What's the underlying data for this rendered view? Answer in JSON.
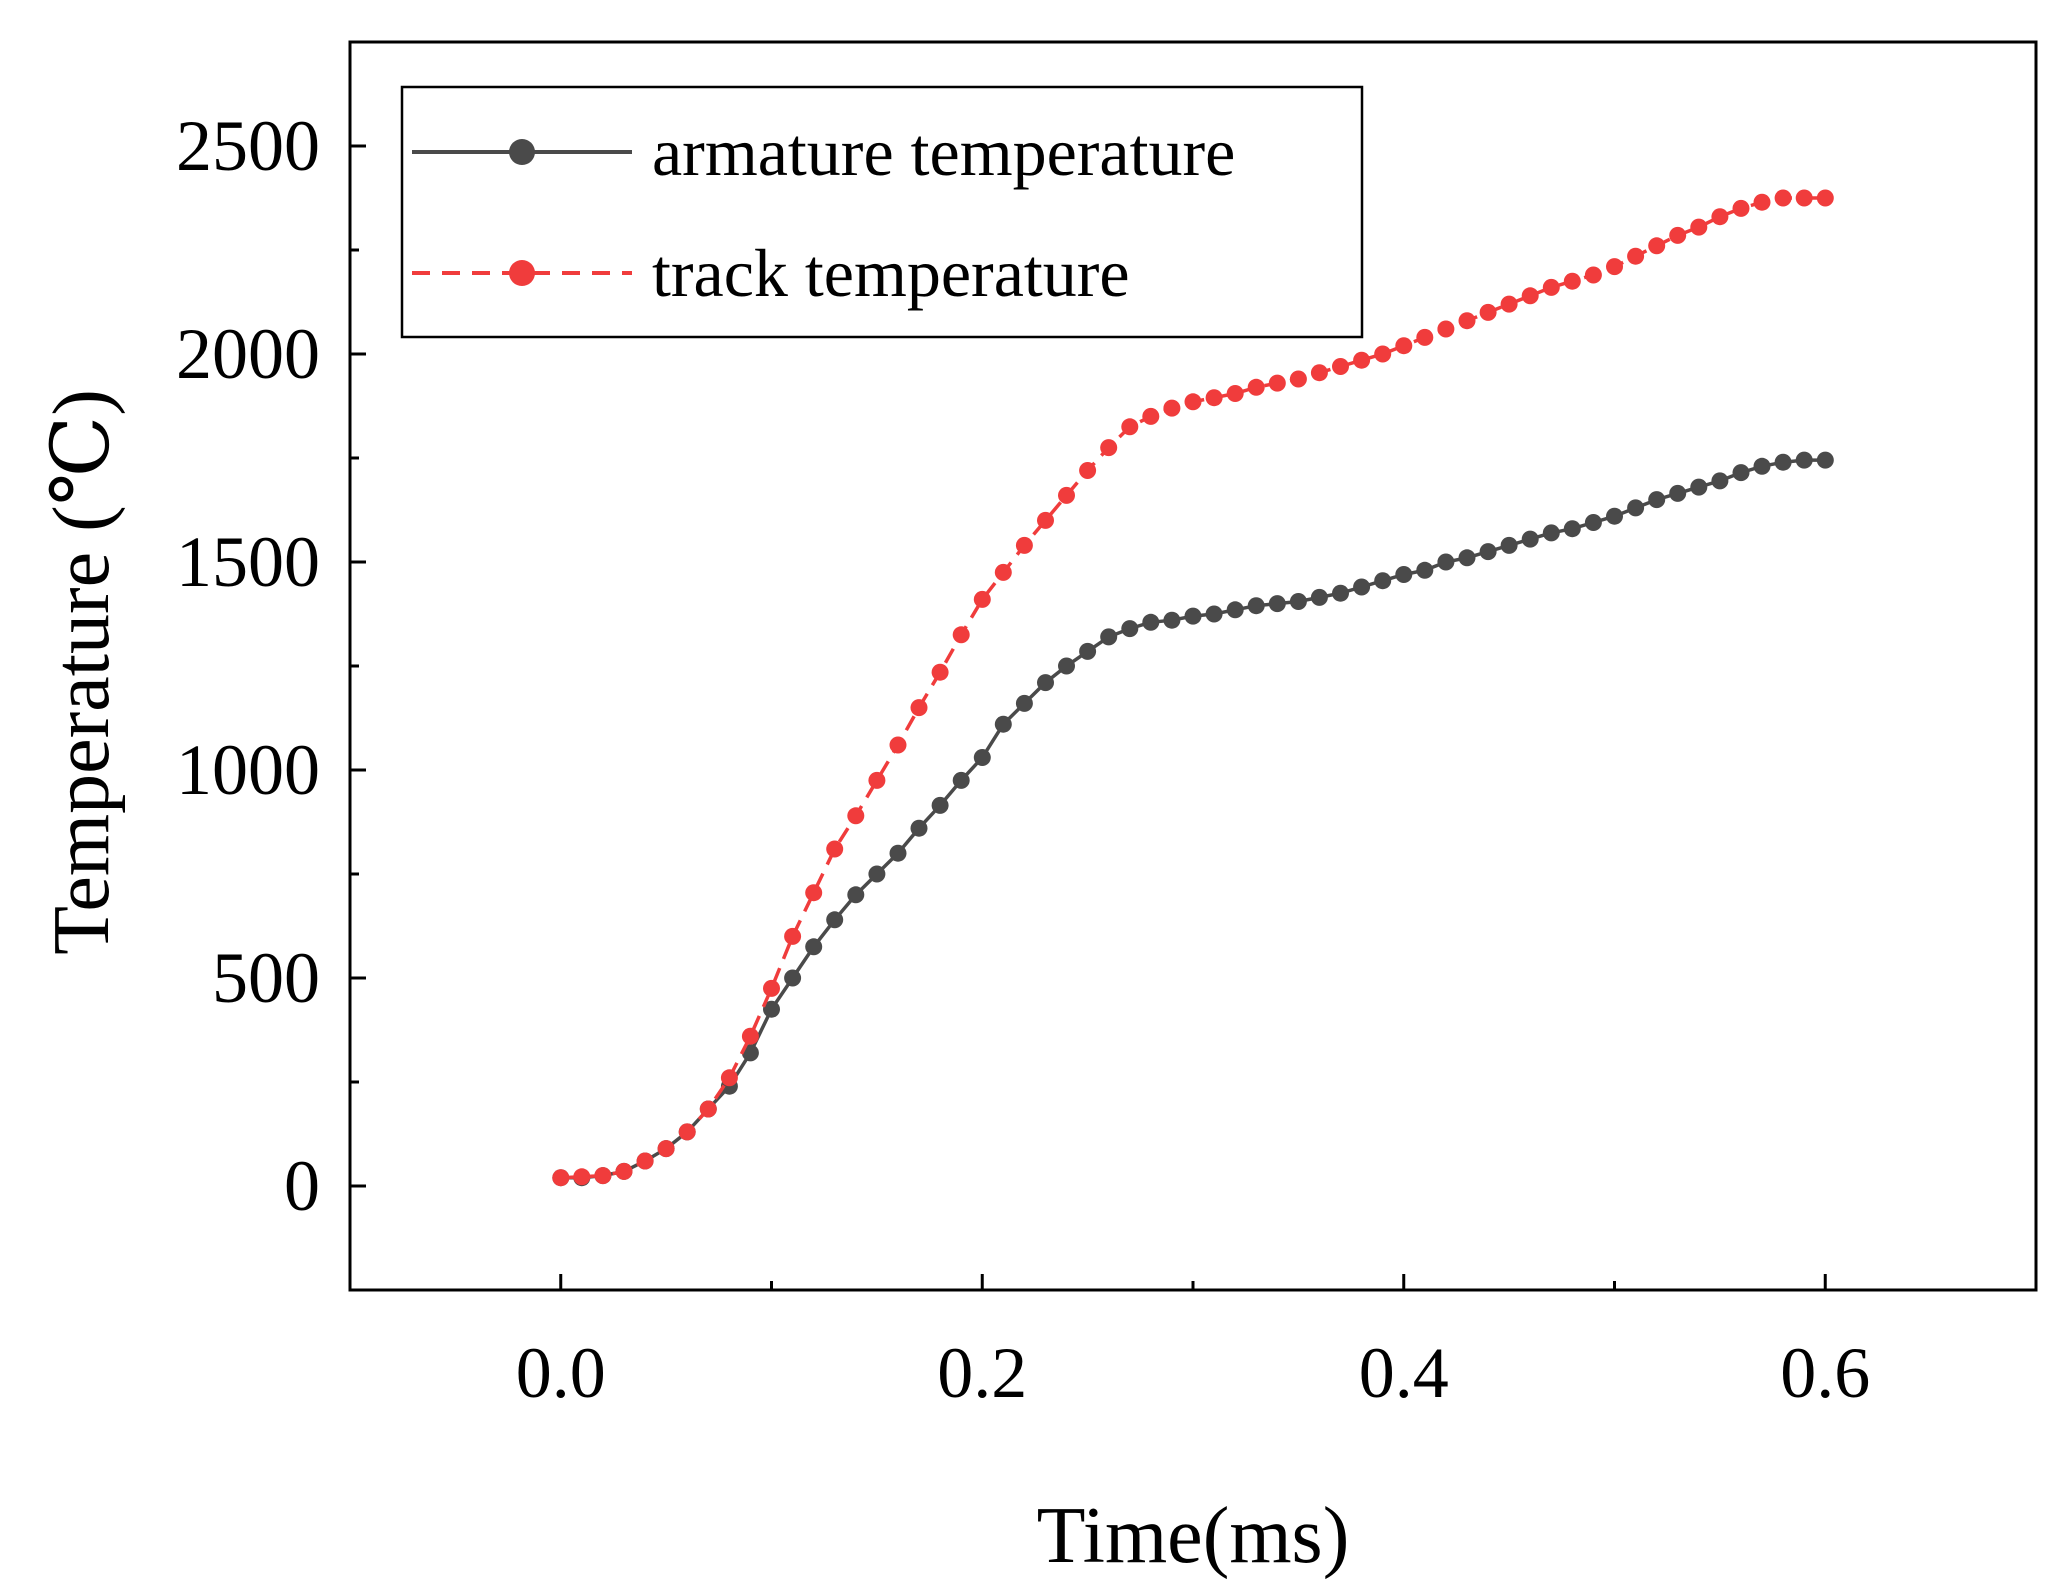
{
  "chart_data": {
    "type": "line",
    "title": "",
    "xlabel": "Time(ms)",
    "ylabel": "Temperature (℃)",
    "xlim": [
      -0.1,
      0.7
    ],
    "ylim": [
      -250,
      2750
    ],
    "xticks": [
      0.0,
      0.2,
      0.4,
      0.6
    ],
    "xtick_labels": [
      "0.0",
      "0.2",
      "0.4",
      "0.6"
    ],
    "yticks": [
      0,
      500,
      1000,
      1500,
      2000,
      2500
    ],
    "ytick_labels": [
      "0",
      "500",
      "1000",
      "1500",
      "2000",
      "2500"
    ],
    "legend_position": "top-left",
    "grid": false,
    "series": [
      {
        "name": "armature temperature",
        "color": "#4a4a4a",
        "line_style": "solid",
        "marker": "circle",
        "x": [
          0.0,
          0.01,
          0.02,
          0.03,
          0.04,
          0.05,
          0.06,
          0.07,
          0.08,
          0.09,
          0.1,
          0.11,
          0.12,
          0.13,
          0.14,
          0.15,
          0.16,
          0.17,
          0.18,
          0.19,
          0.2,
          0.21,
          0.22,
          0.23,
          0.24,
          0.25,
          0.26,
          0.27,
          0.28,
          0.29,
          0.3,
          0.31,
          0.32,
          0.33,
          0.34,
          0.35,
          0.36,
          0.37,
          0.38,
          0.39,
          0.4,
          0.41,
          0.42,
          0.43,
          0.44,
          0.45,
          0.46,
          0.47,
          0.48,
          0.49,
          0.5,
          0.51,
          0.52,
          0.53,
          0.54,
          0.55,
          0.56,
          0.57,
          0.58,
          0.59,
          0.6
        ],
        "y": [
          20,
          20,
          25,
          35,
          60,
          90,
          130,
          185,
          240,
          320,
          425,
          500,
          575,
          640,
          700,
          750,
          800,
          860,
          915,
          975,
          1030,
          1110,
          1160,
          1210,
          1250,
          1285,
          1320,
          1340,
          1355,
          1360,
          1370,
          1375,
          1385,
          1395,
          1400,
          1405,
          1415,
          1425,
          1440,
          1455,
          1470,
          1480,
          1500,
          1510,
          1525,
          1540,
          1555,
          1570,
          1580,
          1595,
          1610,
          1630,
          1650,
          1665,
          1680,
          1695,
          1715,
          1730,
          1740,
          1745,
          1745
        ]
      },
      {
        "name": "track temperature",
        "color": "#f03c3c",
        "line_style": "dashed",
        "marker": "circle",
        "x": [
          0.0,
          0.01,
          0.02,
          0.03,
          0.04,
          0.05,
          0.06,
          0.07,
          0.08,
          0.09,
          0.1,
          0.11,
          0.12,
          0.13,
          0.14,
          0.15,
          0.16,
          0.17,
          0.18,
          0.19,
          0.2,
          0.21,
          0.22,
          0.23,
          0.24,
          0.25,
          0.26,
          0.27,
          0.28,
          0.29,
          0.3,
          0.31,
          0.32,
          0.33,
          0.34,
          0.35,
          0.36,
          0.37,
          0.38,
          0.39,
          0.4,
          0.41,
          0.42,
          0.43,
          0.44,
          0.45,
          0.46,
          0.47,
          0.48,
          0.49,
          0.5,
          0.51,
          0.52,
          0.53,
          0.54,
          0.55,
          0.56,
          0.57,
          0.58,
          0.59,
          0.6
        ],
        "y": [
          20,
          22,
          25,
          35,
          60,
          90,
          130,
          185,
          260,
          360,
          475,
          600,
          705,
          810,
          890,
          975,
          1060,
          1150,
          1235,
          1325,
          1410,
          1475,
          1540,
          1600,
          1660,
          1720,
          1775,
          1825,
          1850,
          1870,
          1885,
          1895,
          1905,
          1920,
          1930,
          1940,
          1955,
          1970,
          1985,
          2000,
          2020,
          2040,
          2060,
          2080,
          2100,
          2120,
          2140,
          2160,
          2175,
          2190,
          2210,
          2235,
          2260,
          2285,
          2305,
          2330,
          2350,
          2365,
          2375,
          2375,
          2375
        ]
      }
    ]
  }
}
